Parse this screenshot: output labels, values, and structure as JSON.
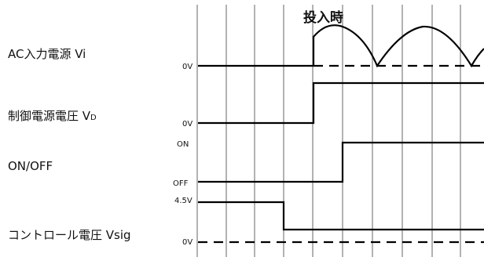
{
  "event_label": "投入時",
  "signals": [
    {
      "name": "AC入力電源 Vi",
      "name_main": "AC入力電源 Vi",
      "levels": [
        "0V"
      ]
    },
    {
      "name": "制御電源電圧 VD",
      "name_main": "制御電源電圧 V",
      "name_sub": "D",
      "levels": [
        "0V"
      ]
    },
    {
      "name": "ON/OFF",
      "name_main": "ON/OFF",
      "levels": [
        "ON",
        "OFF"
      ]
    },
    {
      "name": "コントロール電圧 Vsig",
      "name_main": "コントロール電圧 Vsig",
      "levels": [
        "4.5V",
        "0V"
      ]
    }
  ]
}
